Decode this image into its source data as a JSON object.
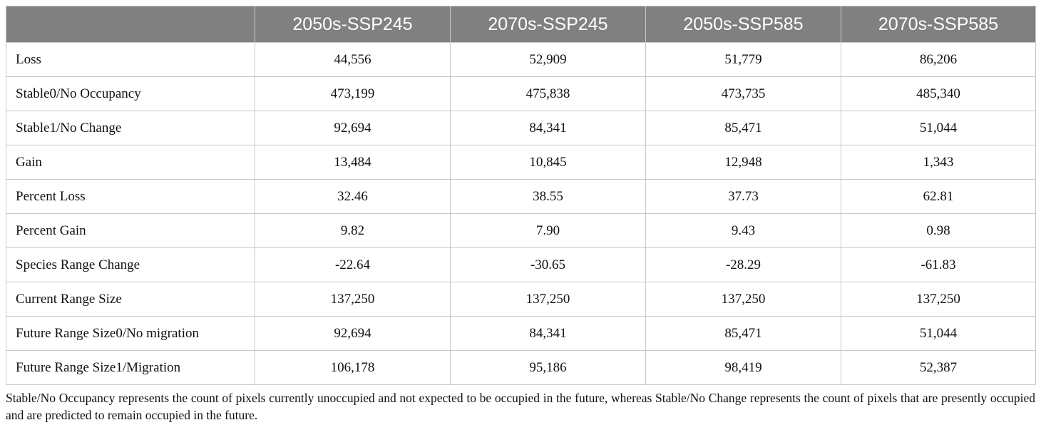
{
  "table": {
    "columns": [
      "2050s-SSP245",
      "2070s-SSP245",
      "2050s-SSP585",
      "2070s-SSP585"
    ],
    "rows": [
      {
        "label": "Loss",
        "values": [
          "44,556",
          "52,909",
          "51,779",
          "86,206"
        ]
      },
      {
        "label": "Stable0/No Occupancy",
        "values": [
          "473,199",
          "475,838",
          "473,735",
          "485,340"
        ]
      },
      {
        "label": "Stable1/No Change",
        "values": [
          "92,694",
          "84,341",
          "85,471",
          "51,044"
        ]
      },
      {
        "label": "Gain",
        "values": [
          "13,484",
          "10,845",
          "12,948",
          "1,343"
        ]
      },
      {
        "label": "Percent Loss",
        "values": [
          "32.46",
          "38.55",
          "37.73",
          "62.81"
        ]
      },
      {
        "label": "Percent Gain",
        "values": [
          "9.82",
          "7.90",
          "9.43",
          "0.98"
        ]
      },
      {
        "label": "Species Range Change",
        "values": [
          "-22.64",
          "-30.65",
          "-28.29",
          "-61.83"
        ]
      },
      {
        "label": "Current Range Size",
        "values": [
          "137,250",
          "137,250",
          "137,250",
          "137,250"
        ]
      },
      {
        "label": "Future Range Size0/No migration",
        "values": [
          "92,694",
          "84,341",
          "85,471",
          "51,044"
        ]
      },
      {
        "label": "Future Range Size1/Migration",
        "values": [
          "106,178",
          "95,186",
          "98,419",
          "52,387"
        ]
      }
    ]
  },
  "footnote": "Stable/No Occupancy represents the count of pixels currently unoccupied and not expected to be occupied in the future, whereas Stable/No Change represents the count of pixels that are presently occupied and are predicted to remain occupied in the future."
}
